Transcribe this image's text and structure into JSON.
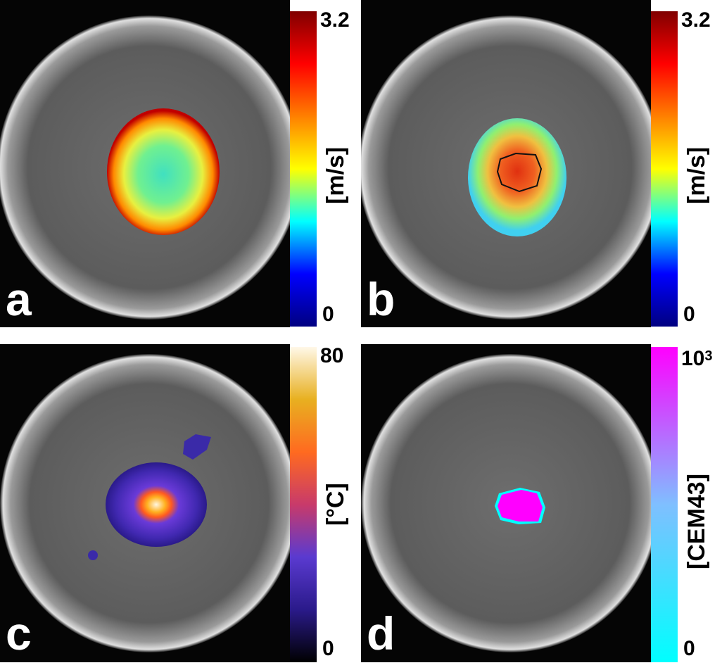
{
  "panels": [
    {
      "letter": "a",
      "colorbar": {
        "max_label": "3.2",
        "min_label": "0",
        "unit": "[m/s]",
        "colors": [
          "#000080",
          "#0000ff",
          "#00ffff",
          "#ffff00",
          "#ff8000",
          "#ff0000",
          "#800000"
        ]
      }
    },
    {
      "letter": "b",
      "colorbar": {
        "max_label": "3.2",
        "min_label": "0",
        "unit": "[m/s]",
        "colors": [
          "#000080",
          "#0000ff",
          "#00ffff",
          "#ffff00",
          "#ff8000",
          "#ff0000",
          "#800000"
        ]
      }
    },
    {
      "letter": "c",
      "colorbar": {
        "max_label": "80",
        "min_label": "0",
        "unit": "[°C]",
        "colors": [
          "#000000",
          "#2a1a8a",
          "#5a3ad0",
          "#c83a6a",
          "#ff6a20",
          "#e8b020",
          "#fff8e8"
        ]
      }
    },
    {
      "letter": "d",
      "colorbar": {
        "max_base": "10",
        "max_exp": "3",
        "min_label": "0",
        "unit": "[CEM43]",
        "colors": [
          "#00ffff",
          "#7fbfff",
          "#ff00ff"
        ]
      }
    }
  ]
}
